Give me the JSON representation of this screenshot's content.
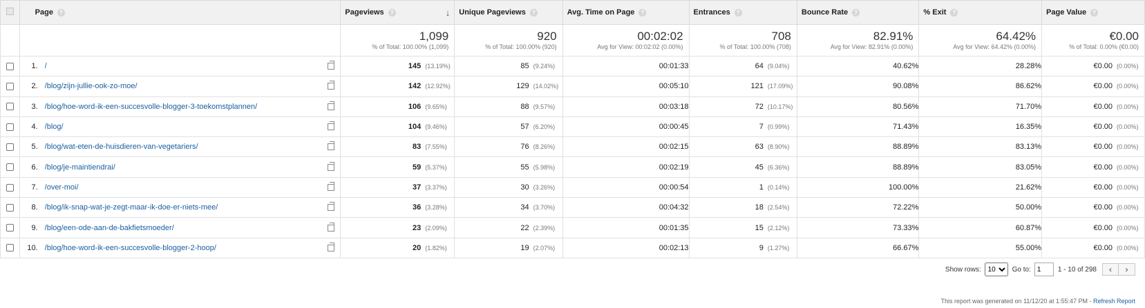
{
  "columns": {
    "page": "Page",
    "pageviews": "Pageviews",
    "unique": "Unique Pageviews",
    "avg_time": "Avg. Time on Page",
    "entrances": "Entrances",
    "bounce": "Bounce Rate",
    "exit": "% Exit",
    "value": "Page Value"
  },
  "sort_icon": "sort-descending-arrow",
  "totals": {
    "pageviews": {
      "main": "1,099",
      "sub": "% of Total: 100.00% (1,099)"
    },
    "unique": {
      "main": "920",
      "sub": "% of Total: 100.00% (920)"
    },
    "avg_time": {
      "main": "00:02:02",
      "sub": "Avg for View: 00:02:02 (0.00%)"
    },
    "entrances": {
      "main": "708",
      "sub": "% of Total: 100.00% (708)"
    },
    "bounce": {
      "main": "82.91%",
      "sub": "Avg for View: 82.91% (0.00%)"
    },
    "exit": {
      "main": "64.42%",
      "sub": "Avg for View: 64.42% (0.00%)"
    },
    "value": {
      "main": "€0.00",
      "sub": "% of Total: 0.00% (€0.00)"
    }
  },
  "rows": [
    {
      "idx": "1.",
      "page": "/",
      "pv": "145",
      "pv_pct": "(13.19%)",
      "upv": "85",
      "upv_pct": "(9.24%)",
      "time": "00:01:33",
      "ent": "64",
      "ent_pct": "(9.04%)",
      "bounce": "40.62%",
      "exit": "28.28%",
      "value": "€0.00",
      "value_pct": "(0.00%)"
    },
    {
      "idx": "2.",
      "page": "/blog/zijn-jullie-ook-zo-moe/",
      "pv": "142",
      "pv_pct": "(12.92%)",
      "upv": "129",
      "upv_pct": "(14.02%)",
      "time": "00:05:10",
      "ent": "121",
      "ent_pct": "(17.09%)",
      "bounce": "90.08%",
      "exit": "86.62%",
      "value": "€0.00",
      "value_pct": "(0.00%)"
    },
    {
      "idx": "3.",
      "page": "/blog/hoe-word-ik-een-succesvolle-blogger-3-toekomstplannen/",
      "pv": "106",
      "pv_pct": "(9.65%)",
      "upv": "88",
      "upv_pct": "(9.57%)",
      "time": "00:03:18",
      "ent": "72",
      "ent_pct": "(10.17%)",
      "bounce": "80.56%",
      "exit": "71.70%",
      "value": "€0.00",
      "value_pct": "(0.00%)"
    },
    {
      "idx": "4.",
      "page": "/blog/",
      "pv": "104",
      "pv_pct": "(9.46%)",
      "upv": "57",
      "upv_pct": "(6.20%)",
      "time": "00:00:45",
      "ent": "7",
      "ent_pct": "(0.99%)",
      "bounce": "71.43%",
      "exit": "16.35%",
      "value": "€0.00",
      "value_pct": "(0.00%)"
    },
    {
      "idx": "5.",
      "page": "/blog/wat-eten-de-huisdieren-van-vegetariers/",
      "pv": "83",
      "pv_pct": "(7.55%)",
      "upv": "76",
      "upv_pct": "(8.26%)",
      "time": "00:02:15",
      "ent": "63",
      "ent_pct": "(8.90%)",
      "bounce": "88.89%",
      "exit": "83.13%",
      "value": "€0.00",
      "value_pct": "(0.00%)"
    },
    {
      "idx": "6.",
      "page": "/blog/je-maintiendrai/",
      "pv": "59",
      "pv_pct": "(5.37%)",
      "upv": "55",
      "upv_pct": "(5.98%)",
      "time": "00:02:19",
      "ent": "45",
      "ent_pct": "(6.36%)",
      "bounce": "88.89%",
      "exit": "83.05%",
      "value": "€0.00",
      "value_pct": "(0.00%)"
    },
    {
      "idx": "7.",
      "page": "/over-moi/",
      "pv": "37",
      "pv_pct": "(3.37%)",
      "upv": "30",
      "upv_pct": "(3.26%)",
      "time": "00:00:54",
      "ent": "1",
      "ent_pct": "(0.14%)",
      "bounce": "100.00%",
      "exit": "21.62%",
      "value": "€0.00",
      "value_pct": "(0.00%)"
    },
    {
      "idx": "8.",
      "page": "/blog/ik-snap-wat-je-zegt-maar-ik-doe-er-niets-mee/",
      "pv": "36",
      "pv_pct": "(3.28%)",
      "upv": "34",
      "upv_pct": "(3.70%)",
      "time": "00:04:32",
      "ent": "18",
      "ent_pct": "(2.54%)",
      "bounce": "72.22%",
      "exit": "50.00%",
      "value": "€0.00",
      "value_pct": "(0.00%)"
    },
    {
      "idx": "9.",
      "page": "/blog/een-ode-aan-de-bakfietsmoeder/",
      "pv": "23",
      "pv_pct": "(2.09%)",
      "upv": "22",
      "upv_pct": "(2.39%)",
      "time": "00:01:35",
      "ent": "15",
      "ent_pct": "(2.12%)",
      "bounce": "73.33%",
      "exit": "60.87%",
      "value": "€0.00",
      "value_pct": "(0.00%)"
    },
    {
      "idx": "10.",
      "page": "/blog/hoe-word-ik-een-succesvolle-blogger-2-hoop/",
      "pv": "20",
      "pv_pct": "(1.82%)",
      "upv": "19",
      "upv_pct": "(2.07%)",
      "time": "00:02:13",
      "ent": "9",
      "ent_pct": "(1.27%)",
      "bounce": "66.67%",
      "exit": "55.00%",
      "value": "€0.00",
      "value_pct": "(0.00%)"
    }
  ],
  "controls": {
    "show_rows_label": "Show rows:",
    "show_rows_value": "10",
    "goto_label": "Go to:",
    "goto_value": "1",
    "range": "1 - 10 of 298",
    "prev_icon": "‹",
    "next_icon": "›"
  },
  "footer": {
    "generated": "This report was generated on 11/12/20 at 1:55:47 PM - ",
    "refresh": "Refresh Report"
  },
  "colors": {
    "link": "#1a5fa0",
    "header_bg": "#f1f1f1",
    "border": "#e0e0e0"
  }
}
